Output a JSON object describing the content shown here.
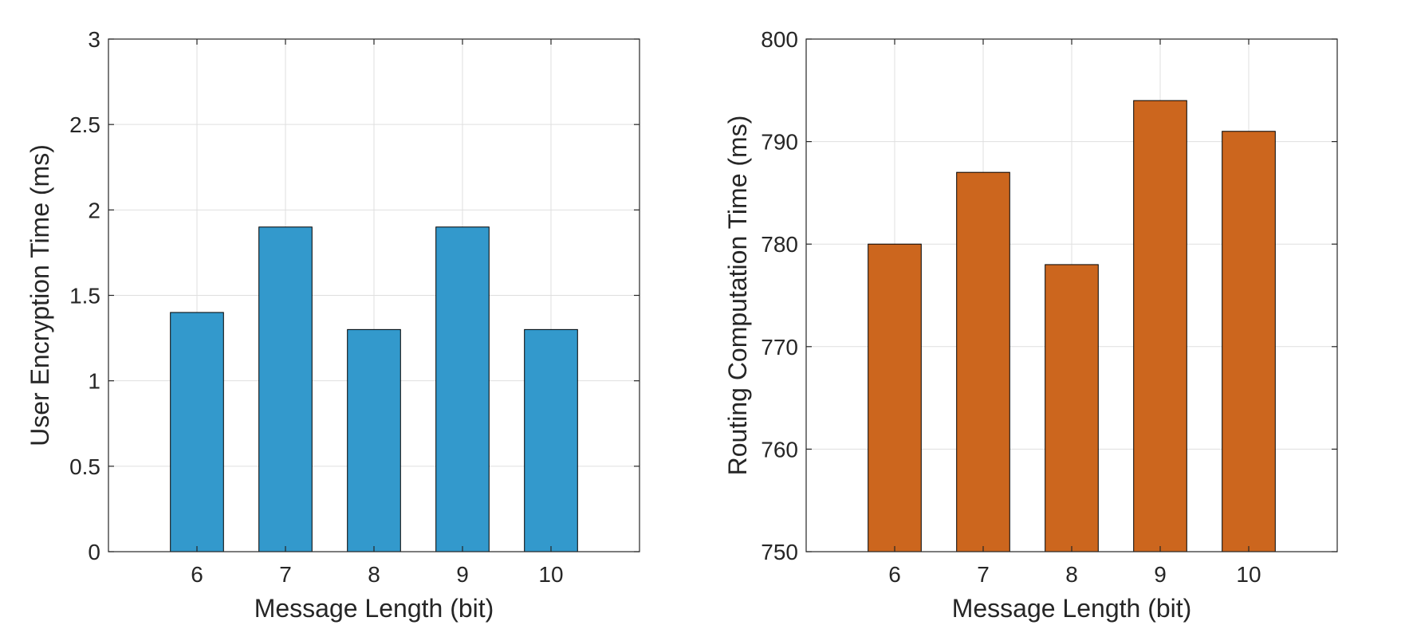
{
  "chart_data": [
    {
      "type": "bar",
      "categories": [
        "6",
        "7",
        "8",
        "9",
        "10"
      ],
      "values": [
        1.4,
        1.9,
        1.3,
        1.9,
        1.3
      ],
      "title": "",
      "xlabel": "Message Length (bit)",
      "ylabel": "User Encryption Time (ms)",
      "ylim": [
        0,
        3
      ],
      "yticks": [
        0,
        0.5,
        1,
        1.5,
        2,
        2.5,
        3
      ],
      "ytick_labels": [
        "0",
        "0.5",
        "1",
        "1.5",
        "2",
        "2.5",
        "3"
      ],
      "grid": true,
      "color": "#3399cc"
    },
    {
      "type": "bar",
      "categories": [
        "6",
        "7",
        "8",
        "9",
        "10"
      ],
      "values": [
        780,
        787,
        778,
        794,
        791
      ],
      "title": "",
      "xlabel": "Message Length (bit)",
      "ylabel": "Routing Computation Time (ms)",
      "ylim": [
        750,
        800
      ],
      "yticks": [
        750,
        760,
        770,
        780,
        790,
        800
      ],
      "ytick_labels": [
        "750",
        "760",
        "770",
        "780",
        "790",
        "800"
      ],
      "grid": true,
      "color": "#cc661e"
    }
  ]
}
